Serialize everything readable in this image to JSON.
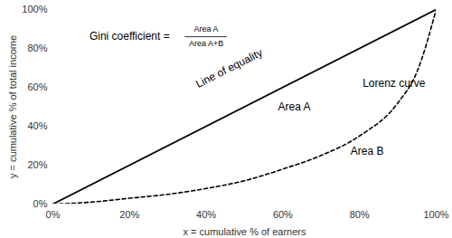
{
  "chart_data": {
    "type": "line",
    "xlabel": "x = cumulative % of earners",
    "ylabel": "y = cumulative % of total income",
    "xlim": [
      0,
      100
    ],
    "ylim": [
      0,
      100
    ],
    "xticks": [
      {
        "value": 0,
        "label": "0%"
      },
      {
        "value": 20,
        "label": "20%"
      },
      {
        "value": 40,
        "label": "40%"
      },
      {
        "value": 60,
        "label": "60%"
      },
      {
        "value": 80,
        "label": "80%"
      },
      {
        "value": 100,
        "label": "100%"
      }
    ],
    "yticks": [
      {
        "value": 0,
        "label": "0%"
      },
      {
        "value": 20,
        "label": "20%"
      },
      {
        "value": 40,
        "label": "40%"
      },
      {
        "value": 60,
        "label": "60%"
      },
      {
        "value": 80,
        "label": "80%"
      },
      {
        "value": 100,
        "label": "100%"
      }
    ],
    "grid": false,
    "series": [
      {
        "name": "Line of equality",
        "color": "#000000",
        "line_style": "solid",
        "x": [
          0,
          100
        ],
        "values": [
          0,
          100
        ]
      },
      {
        "name": "Lorenz curve",
        "color": "#000000",
        "line_style": "dashed",
        "x": [
          0,
          10,
          20,
          30,
          40,
          50,
          60,
          70,
          80,
          90,
          95,
          100
        ],
        "values": [
          0,
          1,
          3,
          5,
          8,
          12,
          18,
          25,
          35,
          52,
          68,
          100
        ]
      }
    ],
    "annotations": [
      "Area A",
      "Area B"
    ],
    "formula": {
      "lhs": "Gini coefficient =",
      "numerator": "Area A",
      "denominator": "Area A+B"
    }
  }
}
